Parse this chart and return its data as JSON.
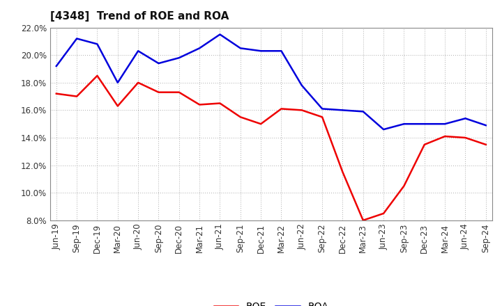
{
  "title": "[4348]  Trend of ROE and ROA",
  "x_labels": [
    "Jun-19",
    "Sep-19",
    "Dec-19",
    "Mar-20",
    "Jun-20",
    "Sep-20",
    "Dec-20",
    "Mar-21",
    "Jun-21",
    "Sep-21",
    "Dec-21",
    "Mar-22",
    "Jun-22",
    "Sep-22",
    "Dec-22",
    "Mar-23",
    "Jun-23",
    "Sep-23",
    "Dec-23",
    "Mar-24",
    "Jun-24",
    "Sep-24"
  ],
  "roe": [
    17.2,
    17.0,
    18.5,
    16.3,
    18.0,
    17.3,
    17.3,
    16.4,
    16.5,
    15.5,
    15.0,
    16.1,
    16.0,
    15.5,
    11.5,
    8.0,
    8.5,
    10.5,
    13.5,
    14.1,
    14.0,
    13.5
  ],
  "roa": [
    19.2,
    21.2,
    20.8,
    18.0,
    20.3,
    19.4,
    19.8,
    20.5,
    21.5,
    20.5,
    20.3,
    20.3,
    17.8,
    16.1,
    16.0,
    15.9,
    14.6,
    15.0,
    15.0,
    15.0,
    15.4,
    14.9
  ],
  "roe_color": "#ee0000",
  "roa_color": "#0000dd",
  "ylim": [
    8.0,
    22.0
  ],
  "yticks": [
    8.0,
    10.0,
    12.0,
    14.0,
    16.0,
    18.0,
    20.0,
    22.0
  ],
  "bg_color": "#ffffff",
  "plot_bg_color": "#ffffff",
  "grid_color": "#aaaaaa",
  "title_fontsize": 11,
  "legend_fontsize": 10,
  "tick_fontsize": 8.5
}
